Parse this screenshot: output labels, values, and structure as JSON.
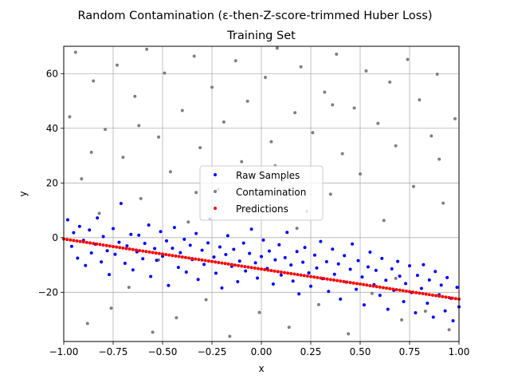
{
  "chart_data": {
    "type": "scatter",
    "title": "Random Contamination (ε-then-Z-score-trimmed Huber Loss)",
    "subtitle": "Training Set",
    "xlabel": "x",
    "ylabel": "y",
    "xlim": [
      -1.0,
      1.0
    ],
    "ylim": [
      -38,
      70
    ],
    "grid": true,
    "legend_position": "center",
    "x_ticks": [
      -1.0,
      -0.75,
      -0.5,
      -0.25,
      0.0,
      0.25,
      0.5,
      0.75,
      1.0
    ],
    "x_tick_labels": [
      "−1.00",
      "−0.75",
      "−0.50",
      "−0.25",
      "0.00",
      "0.25",
      "0.50",
      "0.75",
      "1.00"
    ],
    "y_ticks": [
      -20,
      0,
      20,
      40,
      60
    ],
    "y_tick_labels": [
      "−20",
      "0",
      "20",
      "40",
      "60"
    ],
    "series": [
      {
        "name": "Raw Samples",
        "color": "#0000ff",
        "points": [
          [
            -0.98,
            6.5
          ],
          [
            -0.96,
            -3.2
          ],
          [
            -0.95,
            1.8
          ],
          [
            -0.93,
            -7.5
          ],
          [
            -0.92,
            4.1
          ],
          [
            -0.9,
            -1.0
          ],
          [
            -0.89,
            -10.2
          ],
          [
            -0.87,
            2.8
          ],
          [
            -0.86,
            -5.6
          ],
          [
            -0.84,
            -2.4
          ],
          [
            -0.83,
            7.2
          ],
          [
            -0.81,
            -8.9
          ],
          [
            -0.8,
            0.4
          ],
          [
            -0.78,
            -4.8
          ],
          [
            -0.77,
            -13.5
          ],
          [
            -0.75,
            3.3
          ],
          [
            -0.74,
            -6.1
          ],
          [
            -0.72,
            -1.7
          ],
          [
            -0.71,
            12.5
          ],
          [
            -0.69,
            -9.4
          ],
          [
            -0.68,
            -3.0
          ],
          [
            -0.66,
            1.2
          ],
          [
            -0.65,
            -11.8
          ],
          [
            -0.63,
            -5.2
          ],
          [
            -0.62,
            0.9
          ],
          [
            -0.6,
            -7.7
          ],
          [
            -0.59,
            -2.1
          ],
          [
            -0.57,
            4.6
          ],
          [
            -0.56,
            -14.2
          ],
          [
            -0.54,
            -4.0
          ],
          [
            -0.53,
            -8.3
          ],
          [
            -0.51,
            2.2
          ],
          [
            -0.5,
            -6.8
          ],
          [
            -0.48,
            -1.2
          ],
          [
            -0.47,
            -17.5
          ],
          [
            -0.45,
            -3.9
          ],
          [
            -0.44,
            3.7
          ],
          [
            -0.42,
            -10.9
          ],
          [
            -0.41,
            -5.5
          ],
          [
            -0.39,
            -0.6
          ],
          [
            -0.38,
            -12.6
          ],
          [
            -0.36,
            -2.8
          ],
          [
            -0.35,
            -8.0
          ],
          [
            -0.33,
            1.5
          ],
          [
            -0.32,
            -15.3
          ],
          [
            -0.3,
            -4.6
          ],
          [
            -0.29,
            -9.8
          ],
          [
            -0.27,
            -1.9
          ],
          [
            -0.26,
            6.8
          ],
          [
            -0.24,
            -7.1
          ],
          [
            -0.23,
            -13.0
          ],
          [
            -0.21,
            -3.4
          ],
          [
            -0.2,
            -18.4
          ],
          [
            -0.18,
            -6.2
          ],
          [
            -0.17,
            0.7
          ],
          [
            -0.15,
            -10.5
          ],
          [
            -0.14,
            -4.3
          ],
          [
            -0.12,
            -16.1
          ],
          [
            -0.11,
            -8.6
          ],
          [
            -0.09,
            -2.0
          ],
          [
            -0.08,
            -12.2
          ],
          [
            -0.06,
            -5.8
          ],
          [
            -0.05,
            3.1
          ],
          [
            -0.03,
            -9.2
          ],
          [
            -0.02,
            -14.8
          ],
          [
            0.0,
            -6.9
          ],
          [
            0.01,
            -0.9
          ],
          [
            0.03,
            -11.3
          ],
          [
            0.04,
            -4.9
          ],
          [
            0.06,
            -17.0
          ],
          [
            0.07,
            -8.1
          ],
          [
            0.09,
            -2.6
          ],
          [
            0.1,
            -13.7
          ],
          [
            0.12,
            -7.3
          ],
          [
            0.13,
            1.9
          ],
          [
            0.15,
            -10.0
          ],
          [
            0.16,
            -15.9
          ],
          [
            0.18,
            -5.1
          ],
          [
            0.19,
            -20.6
          ],
          [
            0.21,
            -9.0
          ],
          [
            0.22,
            -3.6
          ],
          [
            0.24,
            -12.9
          ],
          [
            0.25,
            -17.8
          ],
          [
            0.27,
            -6.4
          ],
          [
            0.28,
            -11.1
          ],
          [
            0.3,
            -1.4
          ],
          [
            0.31,
            -15.0
          ],
          [
            0.33,
            -8.8
          ],
          [
            0.34,
            -19.7
          ],
          [
            0.36,
            -4.2
          ],
          [
            0.37,
            -13.4
          ],
          [
            0.39,
            -9.6
          ],
          [
            0.4,
            -22.5
          ],
          [
            0.42,
            -6.6
          ],
          [
            0.43,
            -16.3
          ],
          [
            0.45,
            -11.6
          ],
          [
            0.46,
            -2.3
          ],
          [
            0.48,
            -18.9
          ],
          [
            0.49,
            -8.4
          ],
          [
            0.51,
            -14.4
          ],
          [
            0.52,
            -24.6
          ],
          [
            0.54,
            -10.7
          ],
          [
            0.55,
            -5.3
          ],
          [
            0.57,
            -17.2
          ],
          [
            0.58,
            -12.0
          ],
          [
            0.6,
            -21.1
          ],
          [
            0.61,
            -7.6
          ],
          [
            0.63,
            -15.6
          ],
          [
            0.64,
            -26.2
          ],
          [
            0.66,
            -11.4
          ],
          [
            0.67,
            -19.3
          ],
          [
            0.69,
            -8.7
          ],
          [
            0.7,
            -14.1
          ],
          [
            0.72,
            -23.4
          ],
          [
            0.73,
            -16.8
          ],
          [
            0.75,
            -10.3
          ],
          [
            0.76,
            -20.1
          ],
          [
            0.78,
            -27.5
          ],
          [
            0.79,
            -13.8
          ],
          [
            0.81,
            -18.6
          ],
          [
            0.82,
            -9.9
          ],
          [
            0.84,
            -24.0
          ],
          [
            0.85,
            -15.5
          ],
          [
            0.87,
            -29.1
          ],
          [
            0.88,
            -12.4
          ],
          [
            0.9,
            -20.9
          ],
          [
            0.91,
            -17.4
          ],
          [
            0.93,
            -26.8
          ],
          [
            0.94,
            -14.6
          ],
          [
            0.96,
            -22.2
          ],
          [
            0.97,
            -30.4
          ],
          [
            0.99,
            -18.2
          ],
          [
            1.0,
            -25.3
          ]
        ]
      },
      {
        "name": "Contamination",
        "color": "#808080",
        "points": [
          [
            -0.97,
            44.2
          ],
          [
            -0.94,
            67.8
          ],
          [
            -0.91,
            21.5
          ],
          [
            -0.88,
            -31.4
          ],
          [
            -0.85,
            57.3
          ],
          [
            -0.82,
            8.9
          ],
          [
            -0.79,
            39.6
          ],
          [
            -0.76,
            -25.8
          ],
          [
            -0.73,
            63.1
          ],
          [
            -0.7,
            29.4
          ],
          [
            -0.67,
            -18.2
          ],
          [
            -0.64,
            51.7
          ],
          [
            -0.61,
            14.3
          ],
          [
            -0.58,
            68.9
          ],
          [
            -0.55,
            -34.6
          ],
          [
            -0.52,
            36.8
          ],
          [
            -0.49,
            60.2
          ],
          [
            -0.46,
            24.1
          ],
          [
            -0.43,
            -29.3
          ],
          [
            -0.4,
            46.5
          ],
          [
            -0.37,
            5.7
          ],
          [
            -0.34,
            66.4
          ],
          [
            -0.31,
            32.9
          ],
          [
            -0.28,
            -22.7
          ],
          [
            -0.25,
            55.0
          ],
          [
            -0.22,
            17.6
          ],
          [
            -0.19,
            42.3
          ],
          [
            -0.16,
            -36.1
          ],
          [
            -0.13,
            64.7
          ],
          [
            -0.1,
            27.8
          ],
          [
            -0.07,
            49.9
          ],
          [
            -0.04,
            11.2
          ],
          [
            -0.01,
            -27.4
          ],
          [
            0.02,
            58.6
          ],
          [
            0.05,
            35.1
          ],
          [
            0.08,
            69.3
          ],
          [
            0.11,
            20.8
          ],
          [
            0.14,
            -32.8
          ],
          [
            0.17,
            45.7
          ],
          [
            0.2,
            62.5
          ],
          [
            0.23,
            9.6
          ],
          [
            0.26,
            38.4
          ],
          [
            0.29,
            -24.5
          ],
          [
            0.32,
            53.2
          ],
          [
            0.35,
            15.9
          ],
          [
            0.38,
            67.1
          ],
          [
            0.41,
            30.7
          ],
          [
            0.44,
            -35.2
          ],
          [
            0.47,
            47.4
          ],
          [
            0.5,
            23.3
          ],
          [
            0.53,
            61.0
          ],
          [
            0.56,
            -20.4
          ],
          [
            0.59,
            41.8
          ],
          [
            0.62,
            6.3
          ],
          [
            0.65,
            56.9
          ],
          [
            0.68,
            33.6
          ],
          [
            0.71,
            -30.1
          ],
          [
            0.74,
            65.2
          ],
          [
            0.77,
            18.7
          ],
          [
            0.8,
            50.4
          ],
          [
            0.83,
            -26.9
          ],
          [
            0.86,
            37.2
          ],
          [
            0.89,
            59.8
          ],
          [
            0.92,
            12.6
          ],
          [
            0.95,
            -33.7
          ],
          [
            0.98,
            43.5
          ],
          [
            -0.86,
            31.2
          ],
          [
            -0.62,
            41.0
          ],
          [
            -0.33,
            16.5
          ],
          [
            0.07,
            26.3
          ],
          [
            0.36,
            48.6
          ],
          [
            0.68,
            -14.9
          ],
          [
            0.9,
            28.7
          ],
          [
            -0.52,
            -8.2
          ],
          [
            0.18,
            3.4
          ]
        ]
      },
      {
        "name": "Predictions",
        "color": "#ff0000",
        "x": [
          -1.0,
          1.0
        ],
        "y": [
          -0.5,
          -22.5
        ]
      }
    ]
  }
}
